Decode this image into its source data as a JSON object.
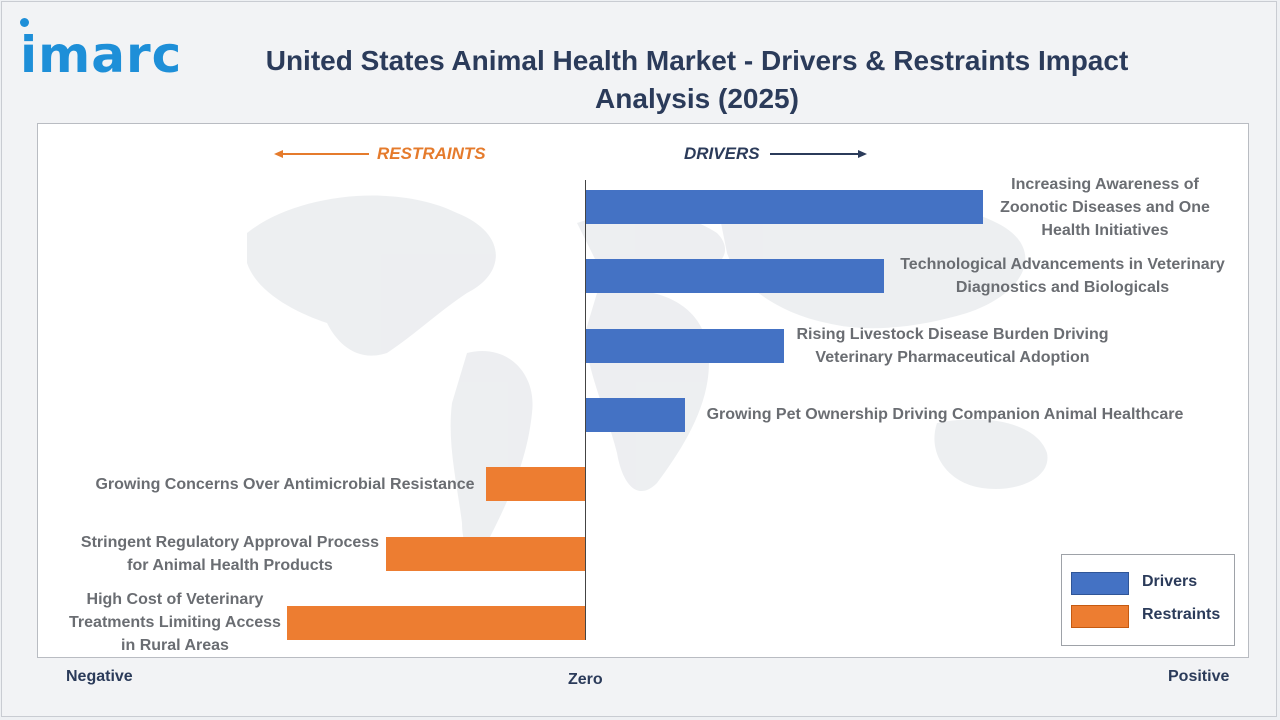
{
  "brand": {
    "logo_text": "imarc"
  },
  "title": "United States Animal Health Market - Drivers & Restraints Impact Analysis (2025)",
  "directions": {
    "restraints": "RESTRAINTS",
    "drivers": "DRIVERS"
  },
  "axis": {
    "negative": "Negative",
    "zero": "Zero",
    "positive": "Positive"
  },
  "legend": {
    "drivers": "Drivers",
    "restraints": "Restraints"
  },
  "colors": {
    "drivers": "#4472c4",
    "restraints": "#ed7d31",
    "title": "#2b3b5a",
    "logo": "#1e8fd8"
  },
  "chart_data": {
    "type": "bar",
    "orientation": "horizontal",
    "title": "United States Animal Health Market - Drivers & Restraints Impact Analysis (2025)",
    "xlim": [
      -3,
      4
    ],
    "legend_position": "bottom-right",
    "grid": false,
    "series": [
      {
        "name": "Drivers",
        "color": "#4472c4"
      },
      {
        "name": "Restraints",
        "color": "#ed7d31"
      }
    ],
    "bars": [
      {
        "label": "Increasing Awareness of Zoonotic Diseases and One Health Initiatives",
        "lines": [
          "Increasing Awareness of",
          "Zoonotic Diseases and One",
          "Health Initiatives"
        ],
        "series": "Drivers",
        "value": 4
      },
      {
        "label": "Technological Advancements in Veterinary Diagnostics and Biologicals",
        "lines": [
          "Technological Advancements in Veterinary",
          "Diagnostics and Biologicals"
        ],
        "series": "Drivers",
        "value": 3
      },
      {
        "label": "Rising Livestock Disease Burden Driving Veterinary Pharmaceutical Adoption",
        "lines": [
          "Rising Livestock Disease Burden Driving",
          "Veterinary Pharmaceutical Adoption"
        ],
        "series": "Drivers",
        "value": 2
      },
      {
        "label": "Growing Pet Ownership Driving Companion Animal Healthcare",
        "lines": [
          "Growing Pet Ownership Driving Companion Animal Healthcare"
        ],
        "series": "Drivers",
        "value": 1
      },
      {
        "label": "Growing Concerns Over Antimicrobial Resistance",
        "lines": [
          "Growing Concerns Over Antimicrobial Resistance"
        ],
        "series": "Restraints",
        "value": -1
      },
      {
        "label": "Stringent Regulatory Approval Process for Animal Health Products",
        "lines": [
          "Stringent Regulatory Approval Process",
          "for Animal Health Products"
        ],
        "series": "Restraints",
        "value": -2
      },
      {
        "label": "High Cost of Veterinary Treatments Limiting Access in Rural Areas",
        "lines": [
          "High Cost of Veterinary",
          "Treatments Limiting Access",
          "in Rural Areas"
        ],
        "series": "Restraints",
        "value": -3
      }
    ]
  }
}
